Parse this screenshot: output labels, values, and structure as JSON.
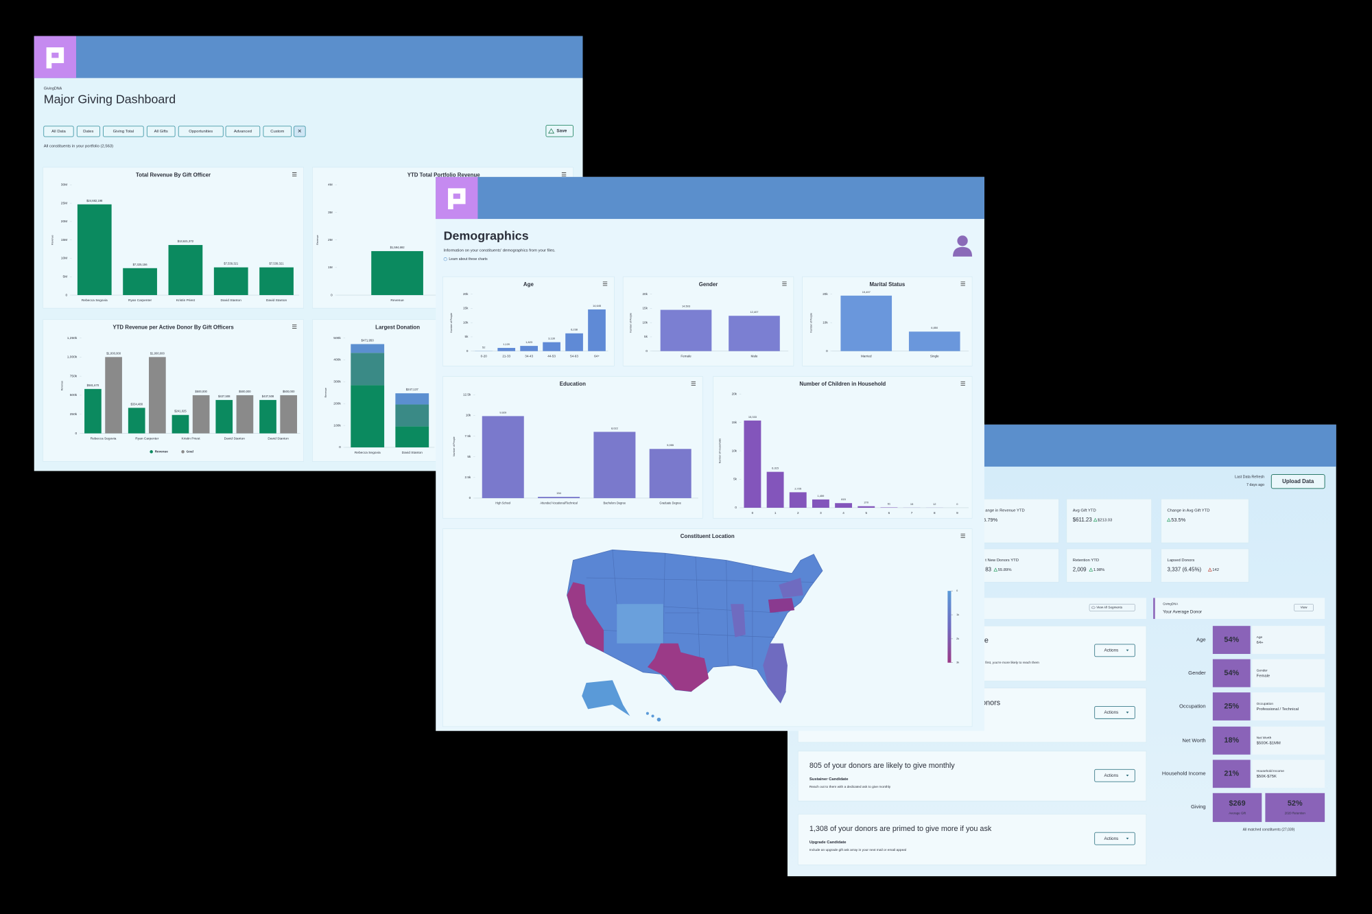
{
  "dashboard": {
    "brand": "GivingDNA",
    "title": "Major Giving Dashboard",
    "filters": [
      "All Data",
      "Dates",
      "Giving Total",
      "All Gifts",
      "Opportunities",
      "Advanced",
      "Custom"
    ],
    "close": "✕",
    "save": "Save",
    "portfolio_note": "All constituents in your portfolio (2,563)",
    "charts": [
      {
        "type": "bar",
        "title": "Total Revenue By Gift Officer",
        "y_label": "Revenue",
        "categories": [
          "Rebecca Segovia",
          "Ryan Carpenter",
          "Kristin Priest",
          "David Stanton",
          "David Stanton"
        ],
        "values": [
          24682198,
          7325156,
          13621372,
          7539321,
          7539321
        ],
        "value_labels": [
          "$24,682,198",
          "$7,325,156",
          "$13,621,372",
          "$7,539,321",
          "$7,539,321"
        ],
        "color": "#0b8a5f",
        "ylim": [
          0,
          30000000
        ],
        "yticks": [
          0,
          {
            "value": 5000000,
            "label": "5M"
          },
          {
            "value": 10000000,
            "label": "10M"
          },
          {
            "value": 15000000,
            "label": "15M"
          },
          {
            "value": 20000000,
            "label": "20M"
          },
          {
            "value": 25000000,
            "label": "25M"
          },
          {
            "value": 30000000,
            "label": "30M"
          }
        ]
      },
      {
        "type": "bar",
        "title": "YTD Total Portfolio Revenue",
        "y_label": "Revenue",
        "categories": [
          "Revenue"
        ],
        "values": [
          1594692
        ],
        "value_labels": [
          "$1,594,692"
        ],
        "color": "#0b8a5f",
        "ylim": [
          0,
          4000000
        ],
        "yticks": [
          0,
          {
            "value": 1000000,
            "label": "1M"
          },
          {
            "value": 2000000,
            "label": "2M"
          },
          {
            "value": 3000000,
            "label": "3M"
          },
          {
            "value": 4000000,
            "label": "4M"
          }
        ]
      },
      {
        "type": "bar",
        "title": "YTD Revenue per Active Donor By Gift Officers",
        "y_label": "Revenue",
        "categories": [
          "Rebecca Segovia",
          "Ryan Carpenter",
          "Kristin Priest",
          "David Stanton",
          "David Stanton"
        ],
        "series": [
          {
            "name": "Revenue",
            "color": "#0b8a5f",
            "values": [
              581670,
              334488,
              241025,
              437508,
              437508
            ],
            "value_labels": [
              "$581,670",
              "$334,488",
              "$241,025",
              "$437,508",
              "$437,508"
            ]
          },
          {
            "name": "Goal",
            "color": "#8a8a8a",
            "values": [
              1000000,
              1000000,
              500000,
              500000,
              500000
            ],
            "value_labels": [
              "$1,000,000",
              "$1,000,000",
              "$500,000",
              "$500,000",
              "$500,000"
            ]
          }
        ],
        "legend": true,
        "ylim": [
          0,
          1250000
        ],
        "yticks": [
          0,
          {
            "value": 250000,
            "label": "250k"
          },
          {
            "value": 500000,
            "label": "500k"
          },
          {
            "value": 750000,
            "label": "750k"
          },
          {
            "value": 1000000,
            "label": "1,000k"
          },
          {
            "value": 1250000,
            "label": "1,250k"
          }
        ]
      },
      {
        "type": "bar",
        "title": "Largest Donation",
        "y_label": "Revenue",
        "stacked": true,
        "categories": [
          "Rebecca Segovia",
          "David Stanton"
        ],
        "series": [
          {
            "color": "#0b8a5f",
            "values": [
              284000,
              96000
            ]
          },
          {
            "color": "#3a8a86",
            "values": [
              148000,
              100000
            ]
          },
          {
            "color": "#5b8fd0",
            "values": [
              39950,
              51137
            ]
          }
        ],
        "totals": [
          471950,
          247137
        ],
        "total_labels": [
          "$471,950",
          "$247,137"
        ],
        "ylim": [
          0,
          500000
        ],
        "yticks": [
          0,
          {
            "value": 100000,
            "label": "100k"
          },
          {
            "value": 200000,
            "label": "200k"
          },
          {
            "value": 300000,
            "label": "300k"
          },
          {
            "value": 400000,
            "label": "400k"
          },
          {
            "value": 500000,
            "label": "500k"
          }
        ]
      }
    ]
  },
  "demographics": {
    "title": "Demographics",
    "subtitle": "Information on your constituents' demographics from your files.",
    "learn_more": "Learn about these charts",
    "charts": [
      {
        "type": "bar",
        "title": "Age",
        "y_label": "Number of People",
        "categories": [
          "0-20",
          "21-33",
          "34-43",
          "44-53",
          "54-63",
          "64+"
        ],
        "values": [
          52,
          1120,
          1823,
          3130,
          6238,
          14645
        ],
        "value_labels": [
          "52",
          "1,120",
          "1,823",
          "3,130",
          "6,238",
          "14,645"
        ],
        "color": "#5f8ad6",
        "ylim": [
          0,
          20000
        ],
        "yticks": [
          0,
          {
            "value": 5000,
            "label": "5k"
          },
          {
            "value": 10000,
            "label": "10k"
          },
          {
            "value": 15000,
            "label": "15k"
          },
          {
            "value": 20000,
            "label": "20k"
          }
        ]
      },
      {
        "type": "bar",
        "title": "Gender",
        "y_label": "Number of People",
        "categories": [
          "Female",
          "Male"
        ],
        "values": [
          14503,
          12407
        ],
        "value_labels": [
          "14,503",
          "12,407"
        ],
        "color": "#7b7fd2",
        "ylim": [
          0,
          20000
        ],
        "yticks": [
          0,
          {
            "value": 5000,
            "label": "5k"
          },
          {
            "value": 10000,
            "label": "10k"
          },
          {
            "value": 15000,
            "label": "15k"
          },
          {
            "value": 20000,
            "label": "20k"
          }
        ]
      },
      {
        "type": "bar",
        "title": "Marital Status",
        "y_label": "Number of People",
        "categories": [
          "Married",
          "Single"
        ],
        "values": [
          19497,
          6850
        ],
        "value_labels": [
          "19,497",
          "6,850"
        ],
        "color": "#6a97dc",
        "ylim": [
          0,
          20000
        ],
        "yticks": [
          0,
          {
            "value": 10000,
            "label": "10k"
          },
          {
            "value": 20000,
            "label": "20k"
          }
        ]
      },
      {
        "type": "bar",
        "title": "Education",
        "y_label": "Number of People",
        "categories": [
          "High School",
          "Attended Vocational/Technical",
          "Bachelors Degree",
          "Graduate Degree"
        ],
        "values": [
          9929,
          154,
          8022,
          5955
        ],
        "value_labels": [
          "9,929",
          "154",
          "8,022",
          "5,955"
        ],
        "color": "#7a79cc",
        "ylim": [
          0,
          12500
        ],
        "yticks": [
          0,
          {
            "value": 2500,
            "label": "2.5k"
          },
          {
            "value": 5000,
            "label": "5k"
          },
          {
            "value": 7500,
            "label": "7.5k"
          },
          {
            "value": 10000,
            "label": "10k"
          },
          {
            "value": 12500,
            "label": "12.5k"
          }
        ]
      },
      {
        "type": "bar",
        "title": "Number of Children in Household",
        "y_label": "Number of Households",
        "categories": [
          "0",
          "1",
          "2",
          "3",
          "4",
          "5",
          "6",
          "7",
          "8",
          "9"
        ],
        "values": [
          15333,
          6315,
          2725,
          1459,
          815,
          270,
          61,
          15,
          12,
          0
        ],
        "value_labels": [
          "15,333",
          "6,315",
          "2,725",
          "1,459",
          "815",
          "270",
          "61",
          "15",
          "12",
          "0"
        ],
        "color": "#8355bb",
        "ylim": [
          0,
          20000
        ],
        "yticks": [
          0,
          {
            "value": 5000,
            "label": "5k"
          },
          {
            "value": 10000,
            "label": "10k"
          },
          {
            "value": 15000,
            "label": "15k"
          },
          {
            "value": 20000,
            "label": "20k"
          }
        ]
      }
    ],
    "map": {
      "title": "Constituent Location",
      "scale_range": [
        0,
        3000
      ],
      "scale_ticks": [
        0,
        {
          "value": 1000,
          "label": "1k"
        },
        {
          "value": 2000,
          "label": "2k"
        },
        {
          "value": 3000,
          "label": "3k"
        }
      ]
    }
  },
  "segments": {
    "refresh_label": "Last Data Refresh",
    "refresh_value": "7 days ago",
    "upload": "Upload Data",
    "kpis": [
      {
        "label": "ange in Revenue YTD",
        "change": "65.79%"
      },
      {
        "label": "Avg Gift YTD",
        "value": "$611.23",
        "change": "$213.03"
      },
      {
        "label": "Change in Avg Gift YTD",
        "change": "53.5%"
      },
      {
        "label": "t New Donors YTD",
        "value": "83",
        "change": "55.89%"
      },
      {
        "label": "Retention YTD",
        "value": "2,009",
        "change": "1.98%"
      },
      {
        "label": "Lapsed Donors",
        "value": "3,337 (6.45%)",
        "change": "142"
      }
    ],
    "view_all": "View All Segments",
    "cards": [
      {
        "headline": "e",
        "note": "first, you're more likely to reach them",
        "action": "Actions"
      },
      {
        "headline": "onors",
        "action": "Actions"
      },
      {
        "headline": "805 of your donors are likely to give monthly",
        "tag": "Sustainer Candidate",
        "note": "Reach out to them with a dedicated ask to give monthly",
        "action": "Actions"
      },
      {
        "headline": "1,308 of your donors are primed to give more if you ask",
        "tag": "Upgrade Candidate",
        "note": "Include an upgrade gift ask array in your next mail or email appeal",
        "action": "Actions"
      }
    ],
    "average_donor": {
      "brand": "GivingDNA",
      "title": "Your Average Donor",
      "view": "View",
      "rows": [
        {
          "label": "Age",
          "percent": "54%",
          "field": "Age",
          "value": "64+"
        },
        {
          "label": "Gender",
          "percent": "54%",
          "field": "Gender",
          "value": "Female"
        },
        {
          "label": "Occupation",
          "percent": "25%",
          "field": "Occupation",
          "value": "Professional / Technical"
        },
        {
          "label": "Net Worth",
          "percent": "18%",
          "field": "Net Worth",
          "value": "$500K-$1MM"
        },
        {
          "label": "Household Income",
          "percent": "21%",
          "field": "Household Income",
          "value": "$50K-$75K"
        }
      ],
      "giving": {
        "label": "Giving",
        "average_gift": "$269",
        "average_gift_label": "Average Gift",
        "retention": "52%",
        "retention_label": "2020 Retention"
      },
      "footnote": "All matched constituents (27,039)"
    }
  }
}
